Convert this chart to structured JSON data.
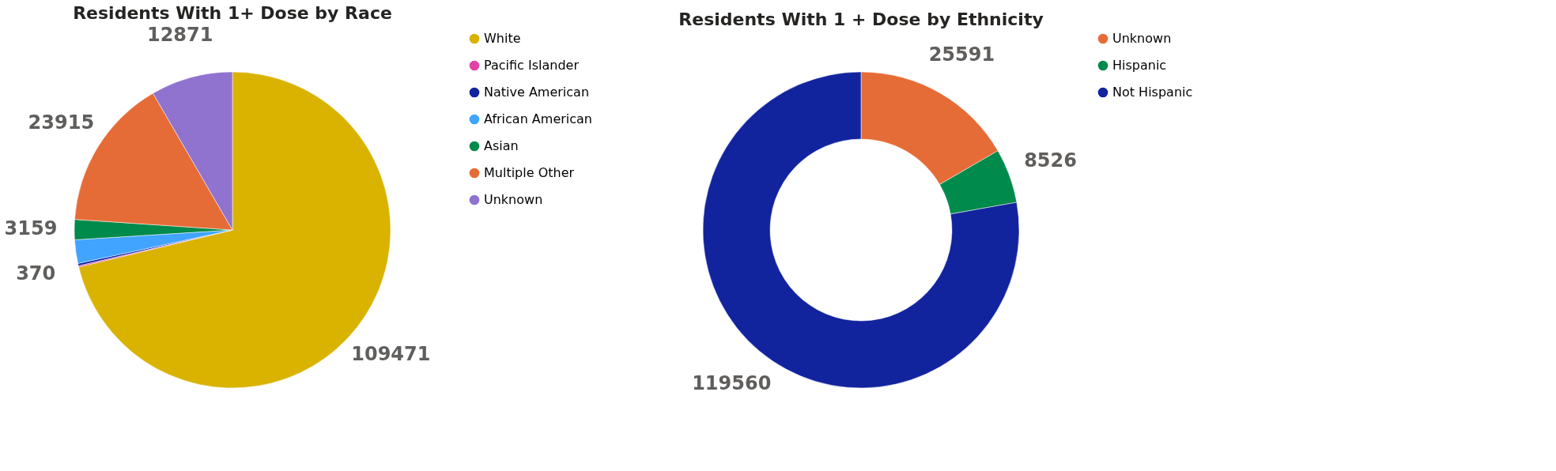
{
  "chart_data": [
    {
      "type": "pie",
      "title": "Residents With 1+ Dose by Race",
      "categories": [
        "White",
        "Pacific Islander",
        "Native American",
        "African American",
        "Asian",
        "Multiple Other",
        "Unknown"
      ],
      "values": [
        109471,
        200,
        370,
        3700,
        3159,
        23915,
        12871
      ],
      "colors": [
        "#d9b300",
        "#e044a7",
        "#12239e",
        "#41a4ff",
        "#008a4b",
        "#e66c37",
        "#8f73cf"
      ],
      "value_labels": [
        "109471",
        null,
        "370",
        null,
        "3159",
        "23915",
        "12871"
      ],
      "legend": "right"
    },
    {
      "type": "donut",
      "title": "Residents With 1 + Dose by Ethnicity",
      "categories": [
        "Unknown",
        "Hispanic",
        "Not Hispanic"
      ],
      "values": [
        25591,
        8526,
        119560
      ],
      "colors": [
        "#e66c37",
        "#008a4b",
        "#12239e"
      ],
      "data_labels": true,
      "legend": "right"
    }
  ]
}
